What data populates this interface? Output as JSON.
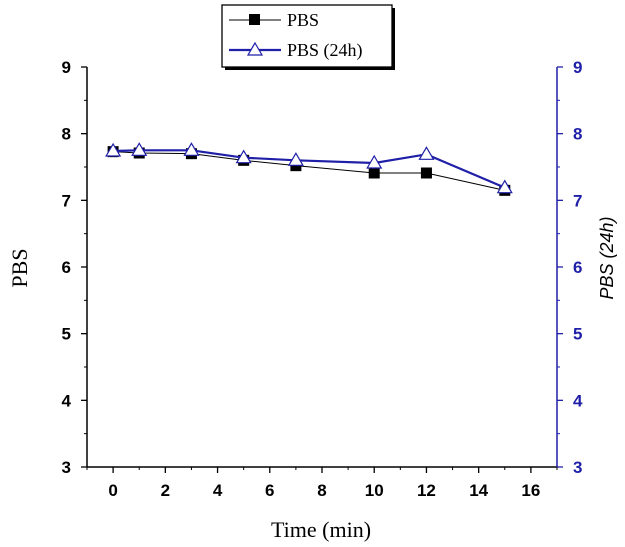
{
  "chart_data": {
    "type": "line",
    "xlabel": "Time (min)",
    "ylabel_left": "PBS",
    "ylabel_right": "PBS (24h)",
    "xlim": [
      -1,
      17
    ],
    "ylim": [
      3,
      9
    ],
    "xticks": [
      0,
      2,
      4,
      6,
      8,
      10,
      12,
      14,
      16
    ],
    "yticks": [
      3,
      4,
      5,
      6,
      7,
      8,
      9
    ],
    "grid": false,
    "legend_position": "top-center",
    "series": [
      {
        "name": "PBS",
        "color": "#000000",
        "marker": "filled-square",
        "axis": "left",
        "x": [
          0,
          1,
          3,
          5,
          7,
          10,
          12,
          15
        ],
        "y": [
          7.73,
          7.71,
          7.7,
          7.6,
          7.52,
          7.41,
          7.41,
          7.15
        ]
      },
      {
        "name": "PBS (24h)",
        "color": "#1f1fa8",
        "marker": "open-triangle",
        "axis": "right",
        "x": [
          0,
          1,
          3,
          5,
          7,
          10,
          12,
          15
        ],
        "y": [
          7.74,
          7.75,
          7.75,
          7.64,
          7.6,
          7.56,
          7.69,
          7.19
        ]
      }
    ],
    "left_axis_color": "#000000",
    "right_axis_color": "#1f1fa8"
  }
}
